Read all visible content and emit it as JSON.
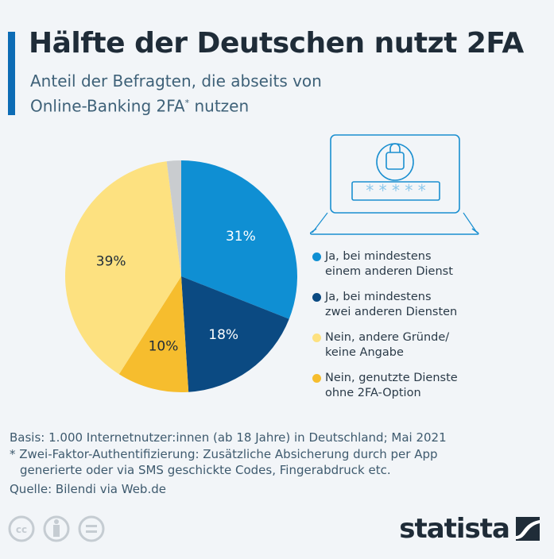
{
  "header": {
    "title": "Hälfte der Deutschen nutzt 2FA",
    "subtitle_line1": "Anteil der Befragten, die abseits von",
    "subtitle_line2": "Online-Banking 2FA",
    "subtitle_sup": "*",
    "subtitle_end": " nutzen"
  },
  "chart_data": {
    "type": "pie",
    "title": "Hälfte der Deutschen nutzt 2FA",
    "slices": [
      {
        "label": "Ja, bei mindestens einem anderen Dienst",
        "value": 31,
        "data_label": "31%",
        "color": "#0f8fd3"
      },
      {
        "label": "Ja, bei mindestens zwei anderen Diensten",
        "value": 18,
        "data_label": "18%",
        "color": "#0b4a82"
      },
      {
        "label": "Nein, genutzte Dienste ohne 2FA-Option",
        "value": 10,
        "data_label": "10%",
        "color": "#f6bd2e"
      },
      {
        "label": "Nein, andere Gründe/ keine Angabe",
        "value": 39,
        "data_label": "39%",
        "color": "#fde180"
      },
      {
        "label": "",
        "value": 2,
        "data_label": "",
        "color": "#c9cccf"
      }
    ],
    "legend_placement": "right"
  },
  "legend": [
    {
      "line1": "Ja, bei mindestens",
      "line2": "einem anderen Dienst",
      "color": "#0f8fd3"
    },
    {
      "line1": "Ja, bei mindestens",
      "line2": "zwei anderen Diensten",
      "color": "#0b4a82"
    },
    {
      "line1": "Nein, andere Gründe/",
      "line2": "keine Angabe",
      "color": "#fde180"
    },
    {
      "line1": "Nein, genutzte Dienste",
      "line2": "ohne 2FA-Option",
      "color": "#f6bd2e"
    }
  ],
  "illustration": {
    "password": "* * * * *"
  },
  "footer": {
    "basis": "Basis: 1.000 Internetnutzer:innen (ab 18 Jahre) in Deutschland; Mai 2021",
    "note1": "* Zwei-Faktor-Authentifizierung: Zusätzliche Absicherung durch per App",
    "note2": "generierte oder via SMS geschickte Codes, Fingerabdruck etc.",
    "source": "Quelle: Bilendi via Web.de",
    "logo": "statista"
  }
}
